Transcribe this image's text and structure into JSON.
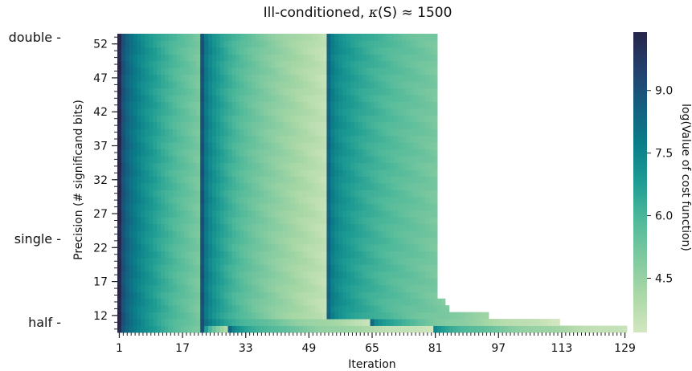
{
  "chart_data": {
    "type": "heatmap",
    "title_main": "Ill-conditioned, ",
    "title_symbol": "κ",
    "title_rest": "(S) ≈ 1500",
    "xlabel": "Iteration",
    "ylabel": "Precision (# significand bits)",
    "colorbar_label": "log(Value of cost function)",
    "x_range": [
      1,
      129
    ],
    "y_range": [
      10,
      53
    ],
    "x_ticks": [
      "1",
      "17",
      "33",
      "49",
      "65",
      "81",
      "97",
      "113",
      "129"
    ],
    "y_ticks": [
      "12",
      "17",
      "22",
      "27",
      "32",
      "37",
      "42",
      "47",
      "52"
    ],
    "colorbar_range": [
      3.2,
      10.4
    ],
    "colorbar_ticks": [
      "4.5",
      "6.0",
      "7.5",
      "9.0"
    ],
    "precision_markers": [
      {
        "label": "double",
        "bits": 52
      },
      {
        "label": "single",
        "bits": 23
      },
      {
        "label": "half",
        "bits": 10
      }
    ],
    "colormap": [
      "#d3e6c0",
      "#aad8a6",
      "#7ec9a0",
      "#4fb99a",
      "#1e9c93",
      "#0a7e89",
      "#145f80",
      "#233f6e",
      "#272549"
    ],
    "iterations_to_converge": [
      {
        "bits_min": 15,
        "bits_max": 53,
        "last_iteration": 81
      },
      {
        "bits": 14,
        "last_iteration": 83
      },
      {
        "bits": 13,
        "last_iteration": 84
      },
      {
        "bits": 12,
        "last_iteration": 94
      },
      {
        "bits": 11,
        "last_iteration": 112
      },
      {
        "bits": 10,
        "last_iteration": 129
      }
    ],
    "cost_profile": {
      "segments": [
        {
          "iter_start": 1,
          "iter_end": 22,
          "log_cost_start": 10.3,
          "log_cost_end": 5.0
        },
        {
          "iter_start": 22,
          "iter_end": 54,
          "log_cost_start": 9.0,
          "log_cost_end": 3.5
        },
        {
          "iter_start": 54,
          "iter_end": 129,
          "log_cost_start": 8.4,
          "log_cost_end": 3.2
        }
      ]
    }
  }
}
